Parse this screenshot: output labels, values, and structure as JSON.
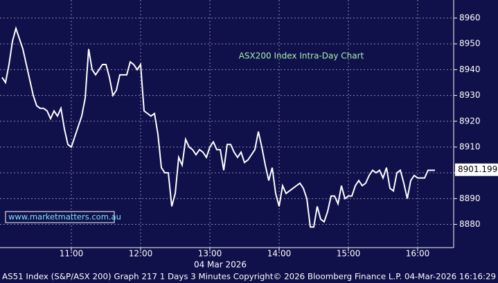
{
  "chart_data": {
    "type": "line",
    "title": "ASX200 Index Intra-Day Chart",
    "watermark": "www.marketmatters.com.au",
    "x_axis_label": "04 Mar 2026",
    "footer": "AS51 Index (S&P/ASX 200) Graph 217 1 Days 3 Minutes Copyright© 2026 Bloomberg Finance L.P. 04-Mar-2026 16:16:29",
    "x": [
      "10:00",
      "10:03",
      "10:06",
      "10:09",
      "10:12",
      "10:15",
      "10:18",
      "10:21",
      "10:24",
      "10:27",
      "10:30",
      "10:33",
      "10:36",
      "10:39",
      "10:42",
      "10:45",
      "10:48",
      "10:51",
      "10:54",
      "10:57",
      "11:00",
      "11:03",
      "11:06",
      "11:09",
      "11:12",
      "11:15",
      "11:18",
      "11:21",
      "11:24",
      "11:27",
      "11:30",
      "11:33",
      "11:36",
      "11:39",
      "11:42",
      "11:45",
      "11:48",
      "11:51",
      "11:54",
      "11:57",
      "12:00",
      "12:03",
      "12:06",
      "12:09",
      "12:12",
      "12:15",
      "12:18",
      "12:21",
      "12:24",
      "12:27",
      "12:30",
      "12:33",
      "12:36",
      "12:39",
      "12:42",
      "12:45",
      "12:48",
      "12:51",
      "12:54",
      "12:57",
      "13:00",
      "13:03",
      "13:06",
      "13:09",
      "13:12",
      "13:15",
      "13:18",
      "13:21",
      "13:24",
      "13:27",
      "13:30",
      "13:33",
      "13:36",
      "13:39",
      "13:42",
      "13:45",
      "13:48",
      "13:51",
      "13:54",
      "13:57",
      "14:00",
      "14:03",
      "14:06",
      "14:09",
      "14:12",
      "14:15",
      "14:18",
      "14:21",
      "14:24",
      "14:27",
      "14:30",
      "14:33",
      "14:36",
      "14:39",
      "14:42",
      "14:45",
      "14:48",
      "14:51",
      "14:54",
      "14:57",
      "15:00",
      "15:03",
      "15:06",
      "15:09",
      "15:12",
      "15:15",
      "15:18",
      "15:21",
      "15:24",
      "15:27",
      "15:30",
      "15:33",
      "15:36",
      "15:39",
      "15:42",
      "15:45",
      "15:48",
      "15:51",
      "15:54",
      "15:57",
      "16:00",
      "16:03",
      "16:06",
      "16:09",
      "16:12",
      "16:15"
    ],
    "series": [
      {
        "name": "AS51 Index",
        "color": "#ffffff",
        "values": [
          8937,
          8935,
          8942,
          8951,
          8956,
          8952,
          8948,
          8942,
          8936,
          8930,
          8926,
          8925,
          8925,
          8924,
          8921,
          8924,
          8922,
          8925,
          8917,
          8911,
          8910,
          8914,
          8918,
          8922,
          8929,
          8948,
          8940,
          8938,
          8940,
          8942,
          8942,
          8937,
          8930,
          8932,
          8938,
          8938,
          8938,
          8943,
          8942,
          8940,
          8942,
          8924,
          8923,
          8922,
          8923,
          8915,
          8902,
          8900,
          8900,
          8887,
          8892,
          8906,
          8903,
          8913,
          8910,
          8909,
          8907,
          8909,
          8908,
          8906,
          8910,
          8912,
          8909,
          8909,
          8901,
          8911,
          8911,
          8908,
          8906,
          8908,
          8904,
          8905,
          8907,
          8909,
          8916,
          8910,
          8903,
          8897,
          8902,
          8892,
          8887,
          8895,
          8892,
          8893,
          8894,
          8895,
          8896,
          8894,
          8890,
          8879,
          8879,
          8887,
          8882,
          8881,
          8885,
          8891,
          8891,
          8888,
          8895,
          8890,
          8891,
          8891,
          8895,
          8897,
          8895,
          8896,
          8899,
          8901,
          8900,
          8901,
          8898,
          8902,
          8894,
          8893,
          8900,
          8901,
          8896,
          8890,
          8897,
          8899,
          8898,
          8898,
          8898,
          8901,
          8901,
          8901
        ]
      }
    ],
    "last_value": 8901.199,
    "xticks": [
      "11:00",
      "12:00",
      "13:00",
      "14:00",
      "15:00",
      "16:00"
    ],
    "ylim": [
      8871,
      8967
    ],
    "yticks": [
      8880,
      8890,
      8900,
      8910,
      8920,
      8930,
      8940,
      8950,
      8960
    ],
    "grid": true
  }
}
